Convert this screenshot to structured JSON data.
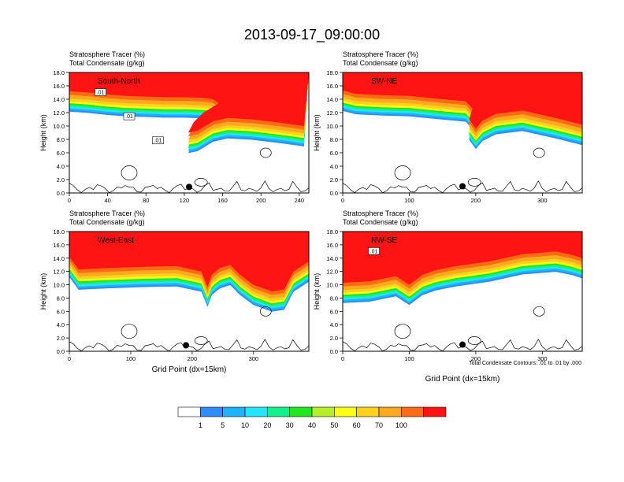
{
  "page_title": "2013-09-17_09:00:00",
  "contour_note": "Total Condensate Contours: .01 to .01 by .000",
  "colors": {
    "bins": [
      "#ffffff",
      "#2f8cff",
      "#1cb4ff",
      "#22e6ff",
      "#14f08c",
      "#22e61e",
      "#b4f028",
      "#ffff14",
      "#ffd21e",
      "#ffaa1e",
      "#ff6b14",
      "#ff1414"
    ],
    "contour": "#000000",
    "marker": "#000000"
  },
  "colorbar": {
    "labels": [
      "1",
      "5",
      "10",
      "20",
      "30",
      "40",
      "50",
      "60",
      "70",
      "100"
    ]
  },
  "chart_data": [
    {
      "type": "heatmap",
      "panel_label": "South-North",
      "title_line1": "Stratosphere Tracer   (%)",
      "title_line2": "Total Condensate   (g/kg)",
      "ylabel": "Height (km)",
      "xlabel": "",
      "xlim": [
        0,
        250
      ],
      "ylim": [
        0,
        18
      ],
      "xticks": [
        "0",
        "40",
        "80",
        "120",
        "160",
        "200",
        "240"
      ],
      "xtick_values": [
        0,
        40,
        80,
        120,
        160,
        200,
        240
      ],
      "yticks": [
        "0.0",
        "2.0",
        "4.0",
        "6.0",
        "8.0",
        "10.0",
        "12.0",
        "14.0",
        "16.0",
        "18.0"
      ],
      "contour_labels": [
        ".01",
        ".01",
        ".01"
      ],
      "tracer_edge": [
        [
          0,
          15.2
        ],
        [
          20,
          15.0
        ],
        [
          40,
          14.7
        ],
        [
          60,
          14.5
        ],
        [
          80,
          14.4
        ],
        [
          100,
          14.3
        ],
        [
          120,
          14.3
        ],
        [
          140,
          14.2
        ],
        [
          150,
          14.0
        ],
        [
          156,
          13.4
        ],
        [
          140,
          12.0
        ],
        [
          130,
          10.6
        ],
        [
          124,
          9.0
        ],
        [
          134,
          9.3
        ],
        [
          150,
          10.7
        ],
        [
          165,
          11.2
        ],
        [
          190,
          11.0
        ],
        [
          220,
          10.5
        ],
        [
          245,
          10.0
        ]
      ],
      "marker": [
        125,
        0.9
      ]
    },
    {
      "type": "heatmap",
      "panel_label": "SW-NE",
      "title_line1": "Stratosphere Tracer   (%)",
      "title_line2": "Total Condensate   (g/kg)",
      "ylabel": "Height (km)",
      "xlabel": "",
      "xlim": [
        0,
        360
      ],
      "ylim": [
        0,
        18
      ],
      "xticks": [
        "0",
        "100",
        "200",
        "300"
      ],
      "xtick_values": [
        0,
        100,
        200,
        300
      ],
      "yticks": [
        "0.0",
        "2.0",
        "4.0",
        "6.0",
        "8.0",
        "10.0",
        "12.0",
        "14.0",
        "16.0",
        "18.0"
      ],
      "contour_labels": [],
      "tracer_edge": [
        [
          0,
          15.3
        ],
        [
          20,
          14.8
        ],
        [
          60,
          14.6
        ],
        [
          100,
          14.5
        ],
        [
          150,
          14.0
        ],
        [
          185,
          13.7
        ],
        [
          195,
          12.6
        ],
        [
          190,
          11.0
        ],
        [
          200,
          9.6
        ],
        [
          210,
          10.8
        ],
        [
          230,
          11.8
        ],
        [
          270,
          12.3
        ],
        [
          320,
          11.2
        ],
        [
          360,
          10.2
        ]
      ],
      "marker": [
        180,
        1.0
      ]
    },
    {
      "type": "heatmap",
      "panel_label": "West-East",
      "title_line1": "Stratosphere Tracer   (%)",
      "title_line2": "Total Condensate   (g/kg)",
      "ylabel": "Height (km)",
      "xlabel": "Grid Point (dx=15km)",
      "xlim": [
        0,
        390
      ],
      "ylim": [
        0,
        18
      ],
      "xticks": [
        "0",
        "100",
        "200",
        "300"
      ],
      "xtick_values": [
        0,
        100,
        200,
        300
      ],
      "yticks": [
        "0.0",
        "2.0",
        "4.0",
        "6.0",
        "8.0",
        "10.0",
        "12.0",
        "14.0",
        "16.0",
        "18.0"
      ],
      "contour_labels": [],
      "tracer_edge": [
        [
          0,
          14.2
        ],
        [
          15,
          12.3
        ],
        [
          60,
          12.5
        ],
        [
          120,
          12.7
        ],
        [
          175,
          12.8
        ],
        [
          215,
          12.0
        ],
        [
          225,
          9.7
        ],
        [
          232,
          11.5
        ],
        [
          245,
          12.5
        ],
        [
          262,
          13.0
        ],
        [
          278,
          11.5
        ],
        [
          300,
          10.0
        ],
        [
          330,
          9.0
        ],
        [
          350,
          9.3
        ],
        [
          365,
          12.0
        ],
        [
          390,
          13.5
        ]
      ],
      "marker": [
        190,
        0.9
      ]
    },
    {
      "type": "heatmap",
      "panel_label": "NW-SE",
      "title_line1": "Stratosphere Tracer   (%)",
      "title_line2": "Total Condensate   (g/kg)",
      "ylabel": "Height (km)",
      "xlabel": "Grid Point (dx=15km)",
      "xlim": [
        0,
        360
      ],
      "ylim": [
        0,
        18
      ],
      "xticks": [
        "0",
        "100",
        "200",
        "300"
      ],
      "xtick_values": [
        0,
        100,
        200,
        300
      ],
      "yticks": [
        "0.0",
        "2.0",
        "4.0",
        "6.0",
        "8.0",
        "10.0",
        "12.0",
        "14.0",
        "16.0",
        "18.0"
      ],
      "contour_labels": [
        ".01"
      ],
      "tracer_edge": [
        [
          0,
          10.3
        ],
        [
          40,
          10.5
        ],
        [
          80,
          11.3
        ],
        [
          100,
          10.0
        ],
        [
          120,
          11.5
        ],
        [
          140,
          12.2
        ],
        [
          170,
          12.8
        ],
        [
          220,
          13.5
        ],
        [
          270,
          14.6
        ],
        [
          320,
          15.0
        ],
        [
          345,
          14.5
        ],
        [
          360,
          14.0
        ]
      ],
      "marker": [
        180,
        1.0
      ]
    }
  ]
}
